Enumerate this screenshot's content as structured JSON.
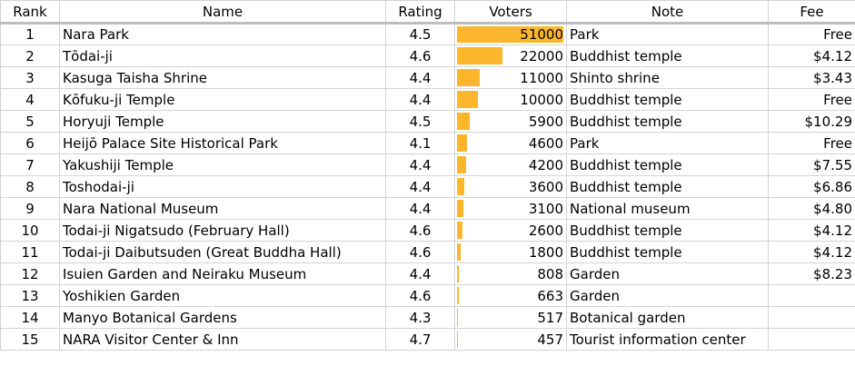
{
  "colors": {
    "bar": "#fbb62e",
    "grid": "#d4d4d4"
  },
  "columns": {
    "rank": "Rank",
    "name": "Name",
    "rating": "Rating",
    "voters": "Voters",
    "note": "Note",
    "fee": "Fee"
  },
  "voters_max": 51000,
  "rows": [
    {
      "rank": "1",
      "name": "Nara Park",
      "rating": "4.5",
      "voters": "51000",
      "voters_value": 51000,
      "note": "Park",
      "fee": "Free"
    },
    {
      "rank": "2",
      "name": "Tōdai-ji",
      "rating": "4.6",
      "voters": "22000",
      "voters_value": 22000,
      "note": "Buddhist temple",
      "fee": "$4.12"
    },
    {
      "rank": "3",
      "name": "Kasuga Taisha Shrine",
      "rating": "4.4",
      "voters": "11000",
      "voters_value": 11000,
      "note": "Shinto shrine",
      "fee": "$3.43"
    },
    {
      "rank": "4",
      "name": "Kōfuku-ji Temple",
      "rating": "4.4",
      "voters": "10000",
      "voters_value": 10000,
      "note": "Buddhist temple",
      "fee": "Free"
    },
    {
      "rank": "5",
      "name": "Horyuji Temple",
      "rating": "4.5",
      "voters": "5900",
      "voters_value": 5900,
      "note": "Buddhist temple",
      "fee": "$10.29"
    },
    {
      "rank": "6",
      "name": "Heijō Palace Site Historical Park",
      "rating": "4.1",
      "voters": "4600",
      "voters_value": 4600,
      "note": "Park",
      "fee": "Free"
    },
    {
      "rank": "7",
      "name": "Yakushiji Temple",
      "rating": "4.4",
      "voters": "4200",
      "voters_value": 4200,
      "note": "Buddhist temple",
      "fee": "$7.55"
    },
    {
      "rank": "8",
      "name": "Toshodai-ji",
      "rating": "4.4",
      "voters": "3600",
      "voters_value": 3600,
      "note": "Buddhist temple",
      "fee": "$6.86"
    },
    {
      "rank": "9",
      "name": "Nara National Museum",
      "rating": "4.4",
      "voters": "3100",
      "voters_value": 3100,
      "note": "National museum",
      "fee": "$4.80"
    },
    {
      "rank": "10",
      "name": "Todai-ji Nigatsudo (February Hall)",
      "rating": "4.6",
      "voters": "2600",
      "voters_value": 2600,
      "note": "Buddhist temple",
      "fee": "$4.12"
    },
    {
      "rank": "11",
      "name": "Todai-ji Daibutsuden (Great Buddha Hall)",
      "rating": "4.6",
      "voters": "1800",
      "voters_value": 1800,
      "note": "Buddhist temple",
      "fee": "$4.12"
    },
    {
      "rank": "12",
      "name": "Isuien Garden and Neiraku Museum",
      "rating": "4.4",
      "voters": "808",
      "voters_value": 808,
      "note": "Garden",
      "fee": "$8.23"
    },
    {
      "rank": "13",
      "name": "Yoshikien Garden",
      "rating": "4.6",
      "voters": "663",
      "voters_value": 663,
      "note": "Garden",
      "fee": ""
    },
    {
      "rank": "14",
      "name": "Manyo Botanical Gardens",
      "rating": "4.3",
      "voters": "517",
      "voters_value": 517,
      "note": "Botanical garden",
      "fee": ""
    },
    {
      "rank": "15",
      "name": "NARA Visitor Center & Inn",
      "rating": "4.7",
      "voters": "457",
      "voters_value": 457,
      "note": "Tourist information center",
      "fee": ""
    }
  ]
}
